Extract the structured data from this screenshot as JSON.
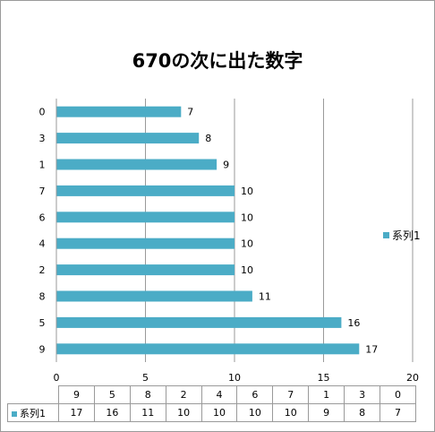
{
  "chart_data": {
    "type": "bar",
    "orientation": "horizontal",
    "title": "670の次に出た数字",
    "categories": [
      "9",
      "5",
      "8",
      "2",
      "4",
      "6",
      "7",
      "1",
      "3",
      "0"
    ],
    "series": [
      {
        "name": "系列1",
        "values": [
          17,
          16,
          11,
          10,
          10,
          10,
          10,
          9,
          8,
          7
        ]
      }
    ],
    "xlim": [
      0,
      20
    ],
    "x_ticks": [
      0,
      5,
      10,
      15,
      20
    ],
    "grid": true,
    "legend": "right",
    "data_table": true,
    "bar_color": "#4BACC6"
  }
}
